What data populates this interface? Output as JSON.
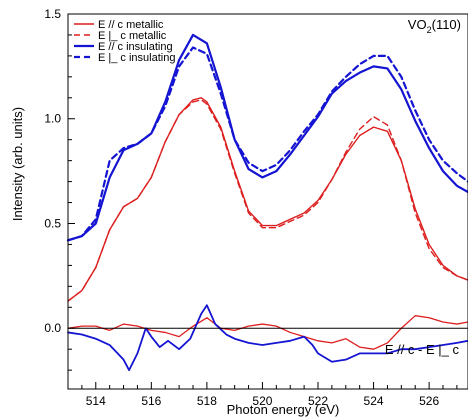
{
  "chart_data": {
    "type": "line",
    "title": "",
    "xlabel": "Photon energy (eV)",
    "ylabel": "Intensity (arb. units)",
    "xlim": [
      513.0,
      527.4
    ],
    "ylim": [
      -0.29,
      1.5
    ],
    "x_ticks": [
      514,
      516,
      518,
      520,
      522,
      524,
      526
    ],
    "y_ticks": [
      0.0,
      0.5,
      1.0,
      1.5
    ],
    "y_tick_labels": [
      "0.0",
      "0.5",
      "1.0",
      "1.5"
    ],
    "grid": false,
    "legend_position": "top-left",
    "annotations": [
      {
        "id": "sample",
        "text": "VO",
        "sub": "2",
        "after": "(110)",
        "position": "top-right"
      },
      {
        "id": "diff",
        "text": "E // c - E |_ c",
        "position": "bottom-right"
      }
    ],
    "baseline": 0.0,
    "series": [
      {
        "name": "E // c metallic",
        "color": "#dd1f1f",
        "dash": "solid",
        "width": 1.4,
        "x": [
          513.0,
          513.5,
          514.0,
          514.5,
          515.0,
          515.5,
          516.0,
          516.5,
          517.0,
          517.5,
          517.8,
          518.0,
          518.5,
          519.0,
          519.5,
          520.0,
          520.5,
          521.0,
          521.5,
          522.0,
          522.5,
          523.0,
          523.5,
          524.0,
          524.5,
          525.0,
          525.5,
          526.0,
          526.5,
          527.0,
          527.4
        ],
        "y": [
          0.13,
          0.18,
          0.29,
          0.47,
          0.58,
          0.62,
          0.72,
          0.89,
          1.02,
          1.09,
          1.1,
          1.08,
          0.96,
          0.75,
          0.56,
          0.49,
          0.49,
          0.52,
          0.55,
          0.61,
          0.71,
          0.83,
          0.92,
          0.96,
          0.94,
          0.8,
          0.57,
          0.4,
          0.3,
          0.25,
          0.23
        ]
      },
      {
        "name": "E |_ c metallic",
        "color": "#dd1f1f",
        "dash": "dashed",
        "width": 1.4,
        "x": [
          513.0,
          513.5,
          514.0,
          514.5,
          515.0,
          515.5,
          516.0,
          516.5,
          517.0,
          517.5,
          517.8,
          518.0,
          518.5,
          519.0,
          519.5,
          520.0,
          520.5,
          521.0,
          521.5,
          522.0,
          522.5,
          523.0,
          523.5,
          524.0,
          524.5,
          525.0,
          525.5,
          526.0,
          526.5,
          527.0,
          527.4
        ],
        "y": [
          0.13,
          0.18,
          0.29,
          0.47,
          0.58,
          0.62,
          0.72,
          0.89,
          1.02,
          1.08,
          1.09,
          1.07,
          0.95,
          0.74,
          0.55,
          0.48,
          0.48,
          0.51,
          0.54,
          0.6,
          0.71,
          0.84,
          0.95,
          1.01,
          0.97,
          0.8,
          0.55,
          0.38,
          0.29,
          0.25,
          0.23
        ]
      },
      {
        "name": "E // c insulating",
        "color": "#1414d2",
        "dash": "solid",
        "width": 2.2,
        "x": [
          513.0,
          513.5,
          514.0,
          514.5,
          515.0,
          515.5,
          516.0,
          516.5,
          517.0,
          517.5,
          518.0,
          518.5,
          519.0,
          519.5,
          520.0,
          520.5,
          521.0,
          521.5,
          522.0,
          522.5,
          523.0,
          523.5,
          524.0,
          524.5,
          525.0,
          525.5,
          526.0,
          526.5,
          527.0,
          527.4
        ],
        "y": [
          0.42,
          0.44,
          0.5,
          0.72,
          0.85,
          0.88,
          0.93,
          1.08,
          1.28,
          1.4,
          1.36,
          1.15,
          0.9,
          0.76,
          0.72,
          0.75,
          0.83,
          0.92,
          1.01,
          1.12,
          1.18,
          1.22,
          1.25,
          1.24,
          1.14,
          0.99,
          0.86,
          0.75,
          0.68,
          0.65
        ]
      },
      {
        "name": "E |_ c insulating",
        "color": "#1414d2",
        "dash": "dashed",
        "width": 2.2,
        "x": [
          513.0,
          513.5,
          514.0,
          514.5,
          515.0,
          515.5,
          516.0,
          516.5,
          517.0,
          517.5,
          518.0,
          518.5,
          519.0,
          519.5,
          520.0,
          520.5,
          521.0,
          521.5,
          522.0,
          522.5,
          523.0,
          523.5,
          524.0,
          524.5,
          525.0,
          525.5,
          526.0,
          526.5,
          527.0,
          527.4
        ],
        "y": [
          0.42,
          0.44,
          0.52,
          0.8,
          0.86,
          0.88,
          0.93,
          1.06,
          1.25,
          1.34,
          1.31,
          1.12,
          0.9,
          0.79,
          0.75,
          0.78,
          0.85,
          0.94,
          1.02,
          1.13,
          1.2,
          1.26,
          1.3,
          1.3,
          1.2,
          1.04,
          0.9,
          0.8,
          0.74,
          0.7
        ]
      },
      {
        "name": "",
        "color": "#dd1f1f",
        "dash": "solid",
        "width": 1.3,
        "x": [
          513.0,
          513.5,
          514.0,
          514.5,
          515.0,
          515.5,
          516.0,
          516.5,
          517.0,
          517.5,
          518.0,
          518.5,
          519.0,
          519.5,
          520.0,
          520.5,
          521.0,
          521.5,
          522.0,
          522.5,
          523.0,
          523.5,
          524.0,
          524.5,
          525.0,
          525.5,
          526.0,
          526.5,
          527.0,
          527.4
        ],
        "y": [
          0.0,
          0.01,
          0.01,
          -0.01,
          0.02,
          0.01,
          -0.01,
          -0.02,
          -0.04,
          0.01,
          0.05,
          0.0,
          -0.01,
          0.01,
          0.02,
          0.01,
          -0.02,
          -0.04,
          -0.06,
          -0.07,
          -0.05,
          -0.09,
          -0.1,
          -0.07,
          0.0,
          0.06,
          0.05,
          0.03,
          0.02,
          0.03
        ]
      },
      {
        "name": "",
        "color": "#1414d2",
        "dash": "solid",
        "width": 1.8,
        "x": [
          513.0,
          513.5,
          514.0,
          514.5,
          515.0,
          515.2,
          515.5,
          515.8,
          516.0,
          516.3,
          516.6,
          517.0,
          517.4,
          517.8,
          518.0,
          518.3,
          518.7,
          519.0,
          519.5,
          520.0,
          520.5,
          521.0,
          521.5,
          521.8,
          522.0,
          522.5,
          523.0,
          523.5,
          524.0,
          524.5,
          525.0,
          525.5,
          526.0,
          526.5,
          527.0,
          527.4
        ],
        "y": [
          -0.02,
          -0.03,
          -0.05,
          -0.08,
          -0.15,
          -0.2,
          -0.12,
          0.0,
          -0.04,
          -0.09,
          -0.06,
          -0.1,
          -0.05,
          0.07,
          0.11,
          0.02,
          -0.03,
          -0.05,
          -0.07,
          -0.08,
          -0.07,
          -0.06,
          -0.04,
          -0.08,
          -0.12,
          -0.16,
          -0.15,
          -0.12,
          -0.12,
          -0.12,
          -0.1,
          -0.1,
          -0.09,
          -0.08,
          -0.07,
          -0.06
        ]
      }
    ]
  }
}
